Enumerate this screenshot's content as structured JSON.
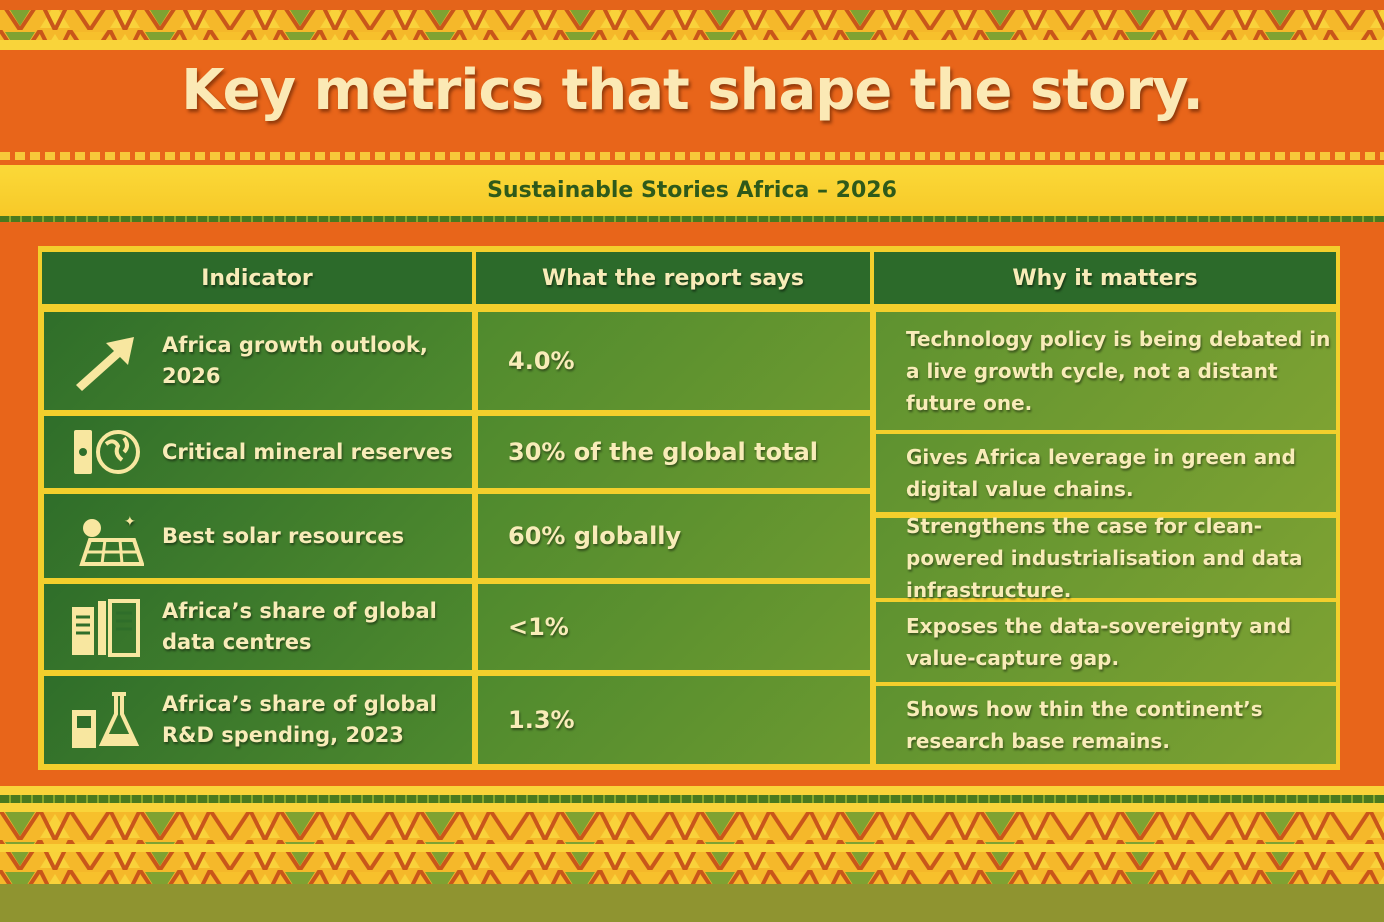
{
  "header": {
    "title": "Key metrics that shape the story.",
    "subtitle": "Sustainable Stories Africa – 2026"
  },
  "colors": {
    "orange": "#e4641a",
    "yellow": "#f9d43a",
    "green": "#2f6e2a",
    "cream": "#fbe9b5"
  },
  "table": {
    "columns": [
      "Indicator",
      "What the report says",
      "Why it matters"
    ],
    "rows": [
      {
        "icon": "arrow-up-right-icon",
        "indicator": "Africa growth outlook, 2026",
        "value": "4.0%",
        "why": "Technology policy is being debated in a live growth cycle, not a distant future one."
      },
      {
        "icon": "mineral-globe-icon",
        "indicator": "Critical mineral reserves",
        "value": "30% of the global total",
        "why": "Gives Africa leverage in green and digital value chains."
      },
      {
        "icon": "solar-panel-icon",
        "indicator": "Best solar resources",
        "value": "60% globally",
        "why": "Strengthens the case for clean-powered industrialisation and data infrastructure."
      },
      {
        "icon": "data-centre-buildings-icon",
        "indicator": "Africa’s share of global data centres",
        "value": "<1%",
        "why": "Exposes the data-sovereignty and value-capture gap."
      },
      {
        "icon": "lab-flask-icon",
        "indicator": "Africa’s share of global R&D spending, 2023",
        "value": "1.3%",
        "why": "Shows how thin the continent’s research base remains."
      }
    ]
  }
}
